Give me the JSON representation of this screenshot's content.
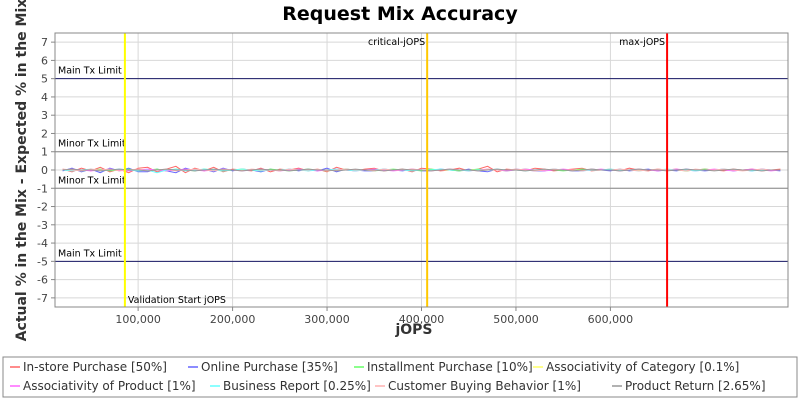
{
  "chart_data": {
    "type": "line",
    "title": "Request Mix Accuracy",
    "xlabel": "jOPS",
    "ylabel": "Actual % in the Mix - Expected % in the Mix",
    "xlim": [
      12000,
      788000
    ],
    "ylim": [
      -7.5,
      7.5
    ],
    "x_ticks": [
      100000,
      200000,
      300000,
      400000,
      500000,
      600000
    ],
    "x_tick_labels": [
      "100,000",
      "200,000",
      "300,000",
      "400,000",
      "500,000",
      "600,000"
    ],
    "y_ticks": [
      7,
      6,
      5,
      4,
      3,
      2,
      1,
      0,
      -1,
      -2,
      -3,
      -4,
      -5,
      -6,
      -7
    ],
    "y_tick_labels": [
      "7",
      "6",
      "5",
      "4",
      "3",
      "2",
      "1",
      "0",
      "-1",
      "-2",
      "-3",
      "-4",
      "-5",
      "-6",
      "-7"
    ],
    "grid": true,
    "legend_position": "bottom",
    "limit_lines": [
      {
        "label": "Main Tx Limit",
        "y": 5,
        "color": "#1a1a66"
      },
      {
        "label": "Minor Tx Limit",
        "y": 1,
        "color": "#888888"
      },
      {
        "label": "Minor Tx Limit",
        "y": -1,
        "color": "#888888"
      },
      {
        "label": "Main Tx Limit",
        "y": -5,
        "color": "#1a1a66"
      }
    ],
    "markers": [
      {
        "label": "Validation Start jOPS",
        "x": 86000,
        "color": "#ffff00",
        "label_pos": "bottom"
      },
      {
        "label": "critical-jOPS",
        "x": 406000,
        "color": "#ffc800",
        "label_pos": "top"
      },
      {
        "label": "max-jOPS",
        "x": 660000,
        "color": "#ff0000",
        "label_pos": "top"
      }
    ],
    "x": [
      20000,
      30000,
      40000,
      50000,
      60000,
      70000,
      80000,
      90000,
      100000,
      110000,
      120000,
      130000,
      140000,
      150000,
      160000,
      170000,
      180000,
      190000,
      200000,
      210000,
      220000,
      230000,
      240000,
      250000,
      260000,
      270000,
      280000,
      290000,
      300000,
      310000,
      320000,
      330000,
      340000,
      350000,
      360000,
      370000,
      380000,
      390000,
      400000,
      410000,
      420000,
      430000,
      440000,
      450000,
      460000,
      470000,
      480000,
      490000,
      500000,
      510000,
      520000,
      530000,
      540000,
      550000,
      560000,
      570000,
      580000,
      590000,
      600000,
      610000,
      620000,
      630000,
      640000,
      650000,
      660000,
      670000,
      680000,
      690000,
      700000,
      710000,
      720000,
      730000,
      740000,
      750000,
      760000,
      770000,
      780000
    ],
    "series": [
      {
        "name": "In-store Purchase [50%]",
        "color": "#ff6666",
        "values": [
          0.05,
          -0.1,
          0.1,
          -0.05,
          0.15,
          -0.1,
          0.05,
          -0.15,
          0.1,
          0.15,
          -0.1,
          0.05,
          0.2,
          -0.15,
          0.1,
          -0.05,
          0.15,
          -0.1,
          0.05,
          0.0,
          -0.05,
          0.1,
          -0.1,
          0.05,
          0.0,
          0.1,
          -0.05,
          0.05,
          -0.1,
          0.15,
          0.0,
          -0.05,
          0.05,
          0.1,
          -0.05,
          0.0,
          0.05,
          -0.1,
          0.1,
          0.05,
          -0.05,
          0.0,
          0.1,
          -0.05,
          0.05,
          0.2,
          -0.1,
          0.05,
          0.0,
          -0.05,
          0.1,
          0.05,
          -0.05,
          0.0,
          0.05,
          0.1,
          -0.05,
          0.0,
          0.05,
          -0.05,
          0.1,
          0.0,
          -0.05,
          0.05,
          0.0,
          0.05,
          -0.05,
          0.0,
          0.05,
          0.0,
          -0.05,
          0.05,
          0.0,
          0.05,
          -0.05,
          0.0,
          0.05
        ]
      },
      {
        "name": "Online Purchase [35%]",
        "color": "#6666ff",
        "values": [
          -0.05,
          0.1,
          -0.1,
          0.05,
          -0.15,
          0.1,
          -0.05,
          0.1,
          -0.1,
          -0.1,
          0.05,
          -0.05,
          -0.15,
          0.1,
          -0.05,
          0.05,
          -0.1,
          0.1,
          -0.05,
          0.05,
          0.0,
          -0.1,
          0.05,
          -0.05,
          0.05,
          -0.05,
          0.05,
          -0.05,
          0.1,
          -0.1,
          0.05,
          0.0,
          -0.05,
          -0.05,
          0.05,
          0.0,
          -0.05,
          0.05,
          -0.05,
          -0.05,
          0.05,
          0.0,
          -0.05,
          0.05,
          -0.05,
          -0.1,
          0.05,
          -0.05,
          0.05,
          0.0,
          -0.05,
          -0.05,
          0.05,
          0.0,
          -0.05,
          -0.05,
          0.05,
          0.0,
          -0.05,
          0.05,
          -0.05,
          0.0,
          0.05,
          -0.05,
          0.0,
          -0.05,
          0.05,
          0.0,
          -0.05,
          0.0,
          0.05,
          -0.05,
          0.0,
          -0.05,
          0.05,
          0.0,
          -0.05
        ]
      },
      {
        "name": "Installment Purchase [10%]",
        "color": "#66ff66",
        "values": [
          0.0,
          0.05,
          -0.05,
          0.0,
          0.05,
          -0.05,
          0.0,
          0.05,
          -0.05,
          0.0,
          0.05,
          -0.05,
          0.05,
          0.0,
          -0.05,
          0.05,
          0.0,
          -0.05,
          0.0,
          0.05,
          0.0,
          -0.05,
          0.05,
          0.0,
          -0.05,
          0.0,
          0.05,
          0.0,
          -0.05,
          0.0,
          0.05,
          0.0,
          0.0,
          -0.05,
          0.0,
          0.05,
          0.0,
          0.0,
          -0.05,
          0.05,
          0.0,
          0.0,
          -0.05,
          0.0,
          0.05,
          0.0,
          0.0,
          -0.05,
          0.0,
          0.05,
          0.0,
          0.0,
          0.0,
          -0.05,
          0.0,
          0.05,
          0.0,
          0.0,
          0.0,
          -0.05,
          0.0,
          0.05,
          0.0,
          0.0,
          0.0,
          0.0,
          -0.05,
          0.0,
          0.05,
          0.0,
          0.0,
          0.0,
          0.0,
          0.0,
          0.0,
          0.0,
          0.0
        ]
      },
      {
        "name": "Associativity of Category [0.1%]",
        "color": "#ffff66",
        "values": [
          0.0,
          0.0,
          0.0,
          0.0,
          0.0,
          0.0,
          0.0,
          0.0,
          0.0,
          0.0,
          0.0,
          0.0,
          0.0,
          0.0,
          0.0,
          0.0,
          0.0,
          0.0,
          0.0,
          0.0,
          0.0,
          0.0,
          0.0,
          0.0,
          0.0,
          0.0,
          0.0,
          0.0,
          0.0,
          0.0,
          0.0,
          0.0,
          0.0,
          0.0,
          0.0,
          0.0,
          0.0,
          0.0,
          0.0,
          0.0,
          0.0,
          0.0,
          0.0,
          0.0,
          0.0,
          0.0,
          0.0,
          0.0,
          0.0,
          0.0,
          0.0,
          0.0,
          0.0,
          0.0,
          0.0,
          0.0,
          0.0,
          0.0,
          0.0,
          0.0,
          0.0,
          0.0,
          0.0,
          0.0,
          0.0,
          0.0,
          0.0,
          0.0,
          0.0,
          0.0,
          0.0,
          0.0,
          0.0,
          0.0,
          0.0,
          0.0,
          0.0
        ]
      },
      {
        "name": "Associativity of Product [1%]",
        "color": "#ff66ff",
        "values": [
          0.0,
          0.05,
          0.0,
          -0.05,
          0.0,
          0.05,
          0.0,
          -0.05,
          0.0,
          0.05,
          0.0,
          -0.05,
          0.0,
          0.05,
          0.0,
          -0.05,
          0.0,
          0.05,
          0.0,
          -0.05,
          0.0,
          0.05,
          0.0,
          -0.05,
          0.0,
          0.05,
          0.0,
          -0.05,
          0.0,
          0.05,
          0.0,
          -0.05,
          0.0,
          0.05,
          0.0,
          -0.05,
          0.0,
          0.05,
          0.0,
          -0.05,
          0.0,
          0.05,
          0.0,
          -0.05,
          0.0,
          0.05,
          0.0,
          -0.05,
          0.0,
          0.05,
          0.0,
          -0.05,
          0.0,
          0.05,
          0.0,
          -0.05,
          0.0,
          0.05,
          0.0,
          -0.05,
          0.0,
          0.05,
          0.0,
          -0.05,
          0.0,
          0.05,
          0.0,
          -0.05,
          0.0,
          0.05,
          0.0,
          -0.05,
          0.0,
          0.05,
          0.0,
          -0.05,
          0.0
        ]
      },
      {
        "name": "Business Report [0.25%]",
        "color": "#66ffff",
        "values": [
          0.0,
          -0.05,
          0.0,
          0.05,
          -0.05,
          0.0,
          0.05,
          0.0,
          -0.05,
          0.0,
          -0.15,
          0.0,
          0.05,
          -0.05,
          0.0,
          0.05,
          0.0,
          -0.05,
          0.0,
          0.05,
          0.0,
          -0.05,
          0.0,
          0.0,
          0.05,
          0.0,
          -0.05,
          0.0,
          0.0,
          0.05,
          0.0,
          -0.05,
          0.0,
          0.0,
          0.05,
          0.0,
          0.0,
          -0.05,
          0.0,
          0.0,
          0.05,
          0.0,
          0.0,
          -0.05,
          0.0,
          0.0,
          0.05,
          0.0,
          0.0,
          -0.05,
          0.0,
          0.0,
          0.05,
          0.0,
          0.0,
          -0.05,
          0.0,
          0.0,
          0.05,
          0.0,
          0.0,
          -0.05,
          0.0,
          0.0,
          0.05,
          0.0,
          0.0,
          -0.05,
          0.0,
          0.0,
          0.05,
          0.0,
          0.0,
          -0.05,
          0.0,
          0.0,
          0.0
        ]
      },
      {
        "name": "Customer Buying Behavior [1%]",
        "color": "#ffb0b0",
        "values": [
          0.05,
          0.0,
          -0.05,
          0.05,
          0.0,
          0.05,
          -0.05,
          0.0,
          0.05,
          -0.05,
          0.0,
          0.05,
          -0.05,
          0.0,
          0.05,
          0.0,
          -0.05,
          0.05,
          0.0,
          -0.05,
          0.05,
          0.0,
          0.0,
          -0.05,
          0.05,
          0.0,
          0.0,
          0.05,
          -0.05,
          0.0,
          0.05,
          0.0,
          0.0,
          -0.05,
          0.05,
          0.0,
          0.0,
          0.05,
          0.0,
          -0.05,
          0.0,
          0.05,
          0.0,
          0.0,
          -0.05,
          0.05,
          0.0,
          0.0,
          0.05,
          0.0,
          -0.05,
          0.0,
          0.05,
          0.0,
          0.0,
          -0.05,
          0.05,
          0.0,
          0.0,
          0.05,
          0.0,
          -0.05,
          0.0,
          0.05,
          0.0,
          0.0,
          -0.05,
          0.05,
          0.0,
          0.0,
          0.05,
          0.0,
          -0.05,
          0.0,
          0.05,
          0.0,
          0.0
        ]
      },
      {
        "name": "Product Return [2.65%]",
        "color": "#999999",
        "values": [
          0.0,
          0.05,
          0.0,
          0.0,
          -0.05,
          0.0,
          0.05,
          0.0,
          0.0,
          -0.05,
          0.0,
          0.05,
          0.0,
          0.0,
          -0.05,
          0.0,
          0.05,
          0.0,
          0.0,
          -0.05,
          0.0,
          0.05,
          0.0,
          0.0,
          -0.05,
          0.0,
          0.05,
          0.0,
          0.0,
          -0.05,
          0.0,
          0.05,
          0.0,
          0.0,
          -0.05,
          0.0,
          0.05,
          0.0,
          0.0,
          -0.05,
          0.0,
          0.05,
          0.0,
          0.0,
          -0.05,
          0.0,
          0.05,
          0.0,
          0.0,
          -0.05,
          0.0,
          0.05,
          0.0,
          0.0,
          -0.05,
          0.0,
          0.05,
          0.0,
          0.0,
          -0.05,
          0.0,
          0.05,
          0.0,
          0.0,
          -0.05,
          0.0,
          0.05,
          0.0,
          0.0,
          -0.05,
          0.0,
          0.05,
          0.0,
          0.0,
          -0.05,
          0.0,
          0.0
        ]
      }
    ]
  }
}
